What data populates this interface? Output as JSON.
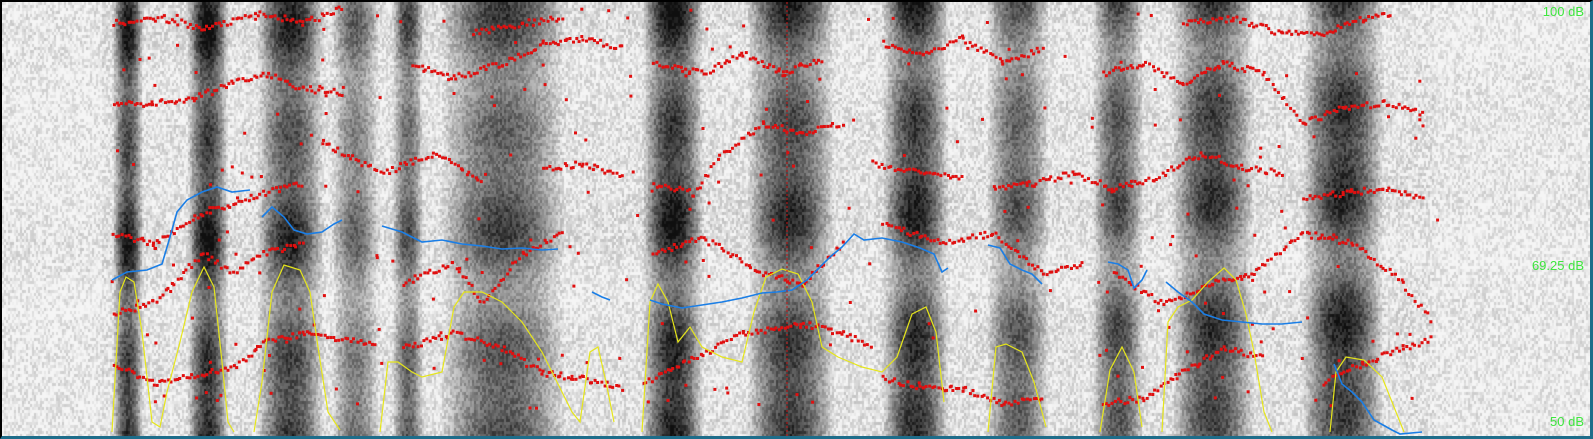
{
  "view": "spectrogram-with-formants",
  "intensity_axis": {
    "top_label": "100 dB",
    "mid_label": "69.25 dB",
    "bottom_label": "50 dB"
  },
  "colors": {
    "formant": "#e01010",
    "pitch": "#1a7ee6",
    "intensity": "#e6e61a",
    "db_text": "#3ee63e",
    "cursor": "#c81414"
  }
}
